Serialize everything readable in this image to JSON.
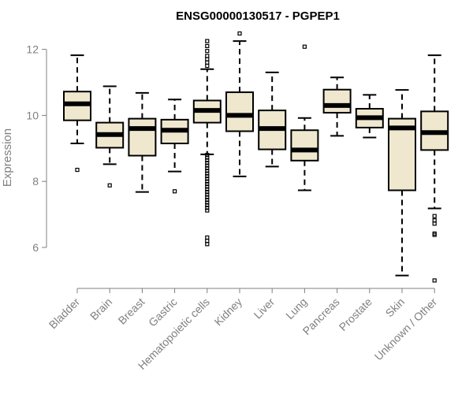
{
  "chart_data": {
    "type": "box",
    "title": "ENSG00000130517 - PGPEP1",
    "xlabel": "",
    "ylabel": "Expression",
    "ylim": [
      5.0,
      12.5
    ],
    "yticks": [
      6,
      8,
      10,
      12
    ],
    "grid": false,
    "box_fill": "#efe8cf",
    "categories": [
      "Bladder",
      "Brain",
      "Breast",
      "Gastric",
      "Hematopoietic cells",
      "Kidney",
      "Liver",
      "Lung",
      "Pancreas",
      "Prostate",
      "Skin",
      "Unknown / Other"
    ],
    "boxes": [
      {
        "whisker_low": 9.15,
        "q1": 9.85,
        "median": 10.35,
        "q3": 10.72,
        "whisker_high": 11.82,
        "outliers": [
          8.35
        ]
      },
      {
        "whisker_low": 8.52,
        "q1": 9.02,
        "median": 9.42,
        "q3": 9.78,
        "whisker_high": 10.88,
        "outliers": [
          7.88
        ]
      },
      {
        "whisker_low": 7.68,
        "q1": 8.78,
        "median": 9.6,
        "q3": 9.9,
        "whisker_high": 10.68,
        "outliers": []
      },
      {
        "whisker_low": 8.3,
        "q1": 9.15,
        "median": 9.55,
        "q3": 9.87,
        "whisker_high": 10.48,
        "outliers": [
          7.7
        ]
      },
      {
        "whisker_low": 8.82,
        "q1": 9.78,
        "median": 10.15,
        "q3": 10.45,
        "whisker_high": 11.4,
        "outliers": [
          12.25,
          12.1,
          11.95,
          11.8,
          11.7,
          11.6,
          11.5,
          8.8,
          8.72,
          8.64,
          8.56,
          8.48,
          8.4,
          8.32,
          8.24,
          8.16,
          8.08,
          8.0,
          7.92,
          7.84,
          7.76,
          7.68,
          7.6,
          7.52,
          7.44,
          7.36,
          7.28,
          7.2,
          7.12,
          6.3,
          6.2,
          6.1
        ]
      },
      {
        "whisker_low": 8.15,
        "q1": 9.52,
        "median": 10.0,
        "q3": 10.7,
        "whisker_high": 12.25,
        "outliers": [
          12.48
        ]
      },
      {
        "whisker_low": 8.45,
        "q1": 8.97,
        "median": 9.6,
        "q3": 10.15,
        "whisker_high": 11.3,
        "outliers": []
      },
      {
        "whisker_low": 7.73,
        "q1": 8.63,
        "median": 8.95,
        "q3": 9.55,
        "whisker_high": 9.92,
        "outliers": [
          12.08
        ]
      },
      {
        "whisker_low": 9.38,
        "q1": 10.08,
        "median": 10.3,
        "q3": 10.78,
        "whisker_high": 11.15,
        "outliers": []
      },
      {
        "whisker_low": 9.33,
        "q1": 9.63,
        "median": 9.93,
        "q3": 10.2,
        "whisker_high": 10.62,
        "outliers": []
      },
      {
        "whisker_low": 5.15,
        "q1": 7.73,
        "median": 9.62,
        "q3": 9.9,
        "whisker_high": 10.77,
        "outliers": []
      },
      {
        "whisker_low": 7.18,
        "q1": 8.95,
        "median": 9.48,
        "q3": 10.12,
        "whisker_high": 11.82,
        "outliers": [
          6.95,
          6.82,
          6.72,
          6.42,
          6.38,
          5.0
        ]
      }
    ]
  }
}
